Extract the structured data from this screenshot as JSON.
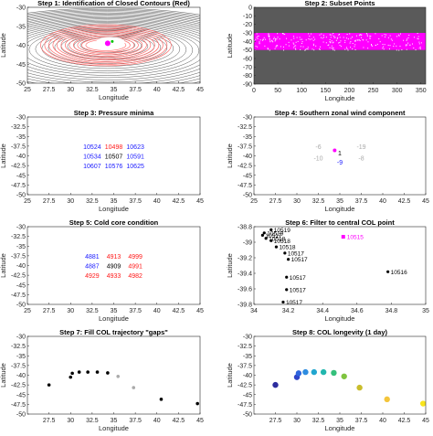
{
  "chart_data": [
    {
      "type": "contour",
      "title": "Step 1: Identification of Closed Contours (Red)",
      "xlabel": "Longitude",
      "ylabel": "Latitude",
      "xlim": [
        25,
        45
      ],
      "ylim": [
        -50,
        -30
      ],
      "xticks": [
        "25",
        "27.5",
        "30",
        "32.5",
        "35",
        "37.5",
        "40",
        "42.5",
        "45"
      ],
      "yticks": [
        "-30",
        "-35",
        "-40",
        "-45",
        "-50"
      ],
      "closed_contours_color": "#ff6b6b",
      "open_contours_color": "#555555",
      "center": {
        "x": 34.3,
        "y": -39.5
      },
      "center_color": "#ff00ff"
    },
    {
      "type": "scatter",
      "title": "Step 2: Subset Points",
      "xlabel": "Longitude",
      "ylabel": "Latitude",
      "xlim": [
        0,
        360
      ],
      "ylim": [
        -90,
        0
      ],
      "xticks": [
        "0",
        "50",
        "100",
        "150",
        "200",
        "250",
        "300",
        "350"
      ],
      "yticks": [
        "0",
        "-10",
        "-20",
        "-30",
        "-40",
        "-50",
        "-60",
        "-70",
        "-80",
        "-90"
      ],
      "band": {
        "ymin": -50,
        "ymax": -30
      },
      "point_color": "#ff00ff",
      "background_color": "#5a5a5a"
    },
    {
      "type": "table",
      "title": "Step 3: Pressure minima",
      "xlabel": "Longitude",
      "ylabel": "Latitude",
      "xlim": [
        25,
        45
      ],
      "ylim": [
        -50,
        -30
      ],
      "xticks": [
        "25",
        "27.5",
        "30",
        "32.5",
        "35",
        "37.5",
        "40",
        "42.5",
        "45"
      ],
      "yticks": [
        "-30",
        "-32.5",
        "-35",
        "-37.5",
        "-40",
        "-42.5",
        "-45",
        "-47.5",
        "-50"
      ],
      "points": [
        {
          "x": 32.5,
          "y": -37.5,
          "label": "10524",
          "color": "#1a1aff"
        },
        {
          "x": 35,
          "y": -37.5,
          "label": "10498",
          "color": "#ff1a1a"
        },
        {
          "x": 37.5,
          "y": -37.5,
          "label": "10623",
          "color": "#1a1aff"
        },
        {
          "x": 32.5,
          "y": -40,
          "label": "10534",
          "color": "#1a1aff"
        },
        {
          "x": 35,
          "y": -40,
          "label": "10507",
          "color": "#000000"
        },
        {
          "x": 37.5,
          "y": -40,
          "label": "10591",
          "color": "#1a1aff"
        },
        {
          "x": 32.5,
          "y": -42.5,
          "label": "10607",
          "color": "#1a1aff"
        },
        {
          "x": 35,
          "y": -42.5,
          "label": "10576",
          "color": "#1a1aff"
        },
        {
          "x": 37.5,
          "y": -42.5,
          "label": "10625",
          "color": "#1a1aff"
        }
      ]
    },
    {
      "type": "table",
      "title": "Step 4: Southern zonal wind component",
      "xlabel": "Longitude",
      "ylabel": "Latitude",
      "xlim": [
        25,
        45
      ],
      "ylim": [
        -50,
        -30
      ],
      "xticks": [
        "25",
        "27.5",
        "30",
        "32.5",
        "35",
        "37.5",
        "40",
        "42.5",
        "45"
      ],
      "yticks": [
        "-30",
        "-32.5",
        "-35",
        "-37.5",
        "-40",
        "-42.5",
        "-45",
        "-47.5",
        "-50"
      ],
      "points": [
        {
          "x": 32.5,
          "y": -37.5,
          "label": "-6",
          "color": "#aaaaaa"
        },
        {
          "x": 37.5,
          "y": -37.5,
          "label": "-19",
          "color": "#aaaaaa"
        },
        {
          "x": 35,
          "y": -39.2,
          "label": "1",
          "color": "#000000"
        },
        {
          "x": 32.5,
          "y": -40.5,
          "label": "-10",
          "color": "#aaaaaa"
        },
        {
          "x": 37.5,
          "y": -40.5,
          "label": "-8",
          "color": "#aaaaaa"
        },
        {
          "x": 35,
          "y": -41.5,
          "label": "-9",
          "color": "#1a1aff"
        }
      ],
      "markers": [
        {
          "x": 34.4,
          "y": -38.6,
          "color": "#ff00ff"
        }
      ]
    },
    {
      "type": "table",
      "title": "Step 5: Cold core condition",
      "xlabel": "Longitude",
      "ylabel": "Latitude",
      "xlim": [
        25,
        45
      ],
      "ylim": [
        -50,
        -30
      ],
      "xticks": [
        "25",
        "27.5",
        "30",
        "32.5",
        "35",
        "37.5",
        "40",
        "42.5",
        "45"
      ],
      "yticks": [
        "-30",
        "-32.5",
        "-35",
        "-37.5",
        "-40",
        "-42.5",
        "-45",
        "-47.5",
        "-50"
      ],
      "points": [
        {
          "x": 32.5,
          "y": -37.5,
          "label": "4881",
          "color": "#1a1aff"
        },
        {
          "x": 35,
          "y": -37.5,
          "label": "4913",
          "color": "#ff1a1a"
        },
        {
          "x": 37.5,
          "y": -37.5,
          "label": "4999",
          "color": "#ff1a1a"
        },
        {
          "x": 32.5,
          "y": -40,
          "label": "4887",
          "color": "#1a1aff"
        },
        {
          "x": 35,
          "y": -40,
          "label": "4909",
          "color": "#000000"
        },
        {
          "x": 37.5,
          "y": -40,
          "label": "4991",
          "color": "#ff1a1a"
        },
        {
          "x": 32.5,
          "y": -42.5,
          "label": "4929",
          "color": "#ff1a1a"
        },
        {
          "x": 35,
          "y": -42.5,
          "label": "4933",
          "color": "#ff1a1a"
        },
        {
          "x": 37.5,
          "y": -42.5,
          "label": "4982",
          "color": "#ff1a1a"
        }
      ]
    },
    {
      "type": "scatter",
      "title": "Step 6: Filter to central COL point",
      "xlabel": "Longitude",
      "ylabel": "Latitude",
      "xlim": [
        34,
        35
      ],
      "ylim": [
        -39.8,
        -38.8
      ],
      "xticks": [
        "34",
        "34.2",
        "34.4",
        "34.6",
        "34.8",
        "35"
      ],
      "yticks": [
        "-38.8",
        "-39",
        "-39.2",
        "-39.4",
        "-39.6",
        "-39.8"
      ],
      "points": [
        {
          "x": 34.1,
          "y": -38.84,
          "label": "10519"
        },
        {
          "x": 34.06,
          "y": -38.88,
          "label": "10519"
        },
        {
          "x": 34.05,
          "y": -38.91,
          "label": "10517"
        },
        {
          "x": 34.07,
          "y": -38.95,
          "label": "10518"
        },
        {
          "x": 34.1,
          "y": -38.98,
          "label": "10518"
        },
        {
          "x": 34.13,
          "y": -39.06,
          "label": "10518"
        },
        {
          "x": 34.18,
          "y": -39.14,
          "label": "10517"
        },
        {
          "x": 34.2,
          "y": -39.22,
          "label": "10517"
        },
        {
          "x": 34.19,
          "y": -39.45,
          "label": "10517"
        },
        {
          "x": 34.19,
          "y": -39.61,
          "label": "10517"
        },
        {
          "x": 34.17,
          "y": -39.77,
          "label": "10517"
        },
        {
          "x": 34.78,
          "y": -39.38,
          "label": "10516"
        }
      ],
      "highlight": {
        "x": 34.52,
        "y": -38.93,
        "label": "10515",
        "color": "#ff00ff"
      }
    },
    {
      "type": "scatter",
      "title": "Step 7: Fill COL trajectory \"gaps\"",
      "xlabel": "Longitude",
      "ylabel": "Latitude",
      "xlim": [
        25,
        45
      ],
      "ylim": [
        -50,
        -30
      ],
      "xticks": [
        "27.5",
        "30",
        "32.5",
        "35",
        "37.5",
        "40",
        "42.5",
        "45"
      ],
      "yticks": [
        "-30",
        "-32.5",
        "-35",
        "-37.5",
        "-40",
        "-42.5",
        "-45",
        "-47.5",
        "-50"
      ],
      "points": [
        {
          "x": 27.5,
          "y": -42.5,
          "color": "#000000"
        },
        {
          "x": 30,
          "y": -40.5,
          "color": "#000000"
        },
        {
          "x": 30.2,
          "y": -39.5,
          "color": "#000000"
        },
        {
          "x": 31,
          "y": -39.2,
          "color": "#000000"
        },
        {
          "x": 32,
          "y": -39.2,
          "color": "#000000"
        },
        {
          "x": 33.1,
          "y": -39.2,
          "color": "#000000"
        },
        {
          "x": 34.3,
          "y": -39.4,
          "color": "#000000"
        },
        {
          "x": 35.5,
          "y": -40.3,
          "color": "#aaaaaa"
        },
        {
          "x": 37.3,
          "y": -43.2,
          "color": "#aaaaaa"
        },
        {
          "x": 40.5,
          "y": -46.2,
          "color": "#000000"
        },
        {
          "x": 44.7,
          "y": -47.3,
          "color": "#000000"
        }
      ]
    },
    {
      "type": "scatter",
      "title": "Step 8: COL longevity (1 day)",
      "xlabel": "Longitude",
      "ylabel": "Latitude",
      "xlim": [
        25,
        45
      ],
      "ylim": [
        -50,
        -30
      ],
      "xticks": [
        "27.5",
        "30",
        "32.5",
        "35",
        "37.5",
        "40",
        "42.5",
        "45"
      ],
      "yticks": [
        "-30",
        "-32.5",
        "-35",
        "-37.5",
        "-40",
        "-42.5",
        "-45",
        "-47.5",
        "-50"
      ],
      "points": [
        {
          "x": 27.5,
          "y": -42.5,
          "color": "#2c2c9e"
        },
        {
          "x": 30,
          "y": -40.5,
          "color": "#2f45c9"
        },
        {
          "x": 30.2,
          "y": -39.5,
          "color": "#2d66de"
        },
        {
          "x": 31,
          "y": -39.2,
          "color": "#2e8ce0"
        },
        {
          "x": 32,
          "y": -39.2,
          "color": "#21a6cf"
        },
        {
          "x": 33.1,
          "y": -39.2,
          "color": "#22b7ae"
        },
        {
          "x": 34.3,
          "y": -39.4,
          "color": "#35c07c"
        },
        {
          "x": 35.5,
          "y": -40.3,
          "color": "#7fc43f"
        },
        {
          "x": 37.3,
          "y": -43.2,
          "color": "#c9bd2c"
        },
        {
          "x": 40.5,
          "y": -46.2,
          "color": "#f4c53b"
        },
        {
          "x": 44.7,
          "y": -47.3,
          "color": "#f9e51d"
        }
      ]
    }
  ]
}
